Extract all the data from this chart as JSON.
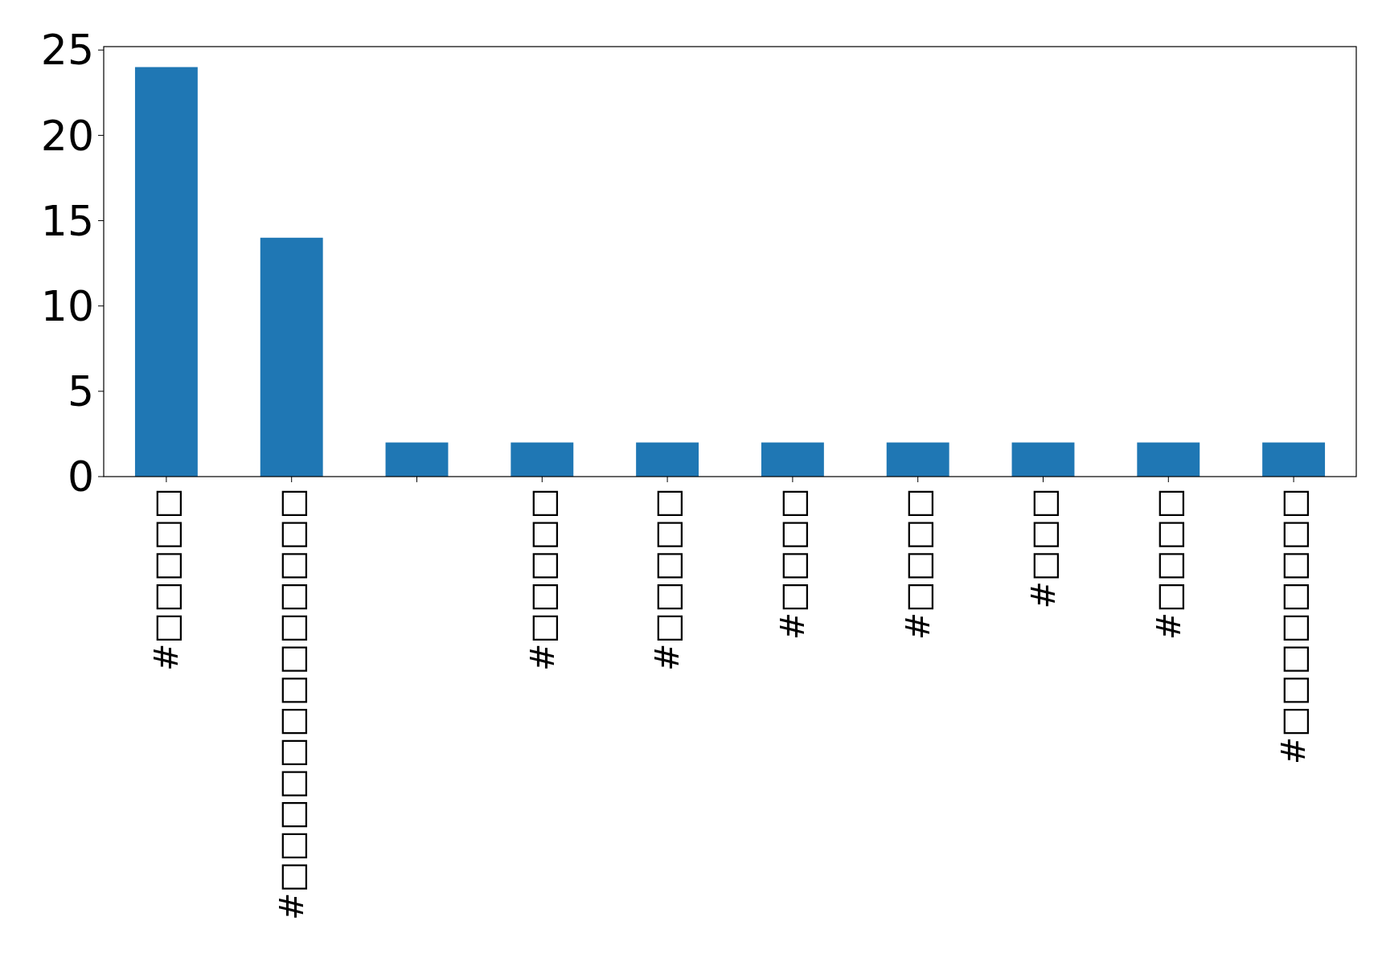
{
  "chart_data": {
    "type": "bar",
    "categories": [
      "#□□□□□",
      "#□□□□□□□□□□□□□",
      null,
      "#□□□□□",
      "#□□□□□",
      "#□□□□",
      "#□□□□",
      "#□□□",
      "#□□□□",
      "#□□□□□□□□"
    ],
    "values": [
      24,
      14,
      2,
      2,
      2,
      2,
      2,
      2,
      2,
      2
    ],
    "color": "#1f77b4",
    "ylim": [
      0,
      25.2
    ],
    "yticks": [
      0,
      5,
      10,
      15,
      20,
      25
    ],
    "grid": false
  }
}
